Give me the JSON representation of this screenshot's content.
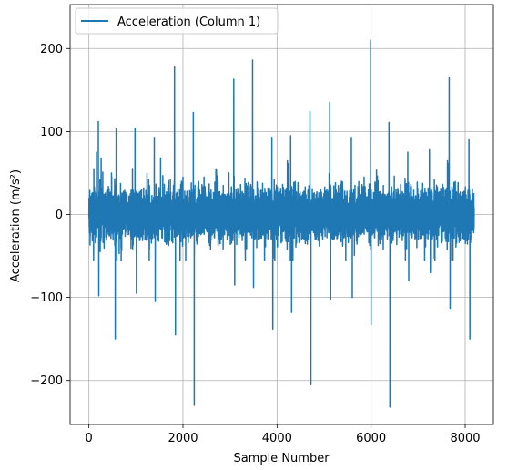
{
  "chart_data": {
    "type": "line",
    "title": "",
    "xlabel": "Sample Number",
    "ylabel": "Acceleration (m/s²)",
    "xlim": [
      -400,
      8600
    ],
    "ylim": [
      -253,
      253
    ],
    "xticks": [
      0,
      2000,
      4000,
      6000,
      8000
    ],
    "xtick_labels": [
      "0",
      "2000",
      "4000",
      "6000",
      "8000"
    ],
    "yticks": [
      -200,
      -100,
      0,
      100,
      200
    ],
    "ytick_labels": [
      "−200",
      "−100",
      "0",
      "100",
      "200"
    ],
    "grid": true,
    "legend_position": "upper-left",
    "series": [
      {
        "name": "Acceleration (Column 1)",
        "color": "#1f77b4",
        "n_samples": 8192,
        "x_range": [
          0,
          8191
        ],
        "approx_typical_range": [
          -40,
          50
        ],
        "spikes": [
          {
            "x": 50,
            "y": 20
          },
          {
            "x": 100,
            "y": -55
          },
          {
            "x": 160,
            "y": 75
          },
          {
            "x": 200,
            "y": 112
          },
          {
            "x": 210,
            "y": -98
          },
          {
            "x": 480,
            "y": 50
          },
          {
            "x": 560,
            "y": -150
          },
          {
            "x": 580,
            "y": 103
          },
          {
            "x": 980,
            "y": 104
          },
          {
            "x": 1010,
            "y": -95
          },
          {
            "x": 1390,
            "y": 93
          },
          {
            "x": 1410,
            "y": -105
          },
          {
            "x": 1820,
            "y": 178
          },
          {
            "x": 1840,
            "y": -145
          },
          {
            "x": 2000,
            "y": 45
          },
          {
            "x": 2220,
            "y": 123
          },
          {
            "x": 2240,
            "y": -230
          },
          {
            "x": 2700,
            "y": 55
          },
          {
            "x": 3080,
            "y": 163
          },
          {
            "x": 3100,
            "y": -85
          },
          {
            "x": 3480,
            "y": 186
          },
          {
            "x": 3500,
            "y": -88
          },
          {
            "x": 3890,
            "y": 93
          },
          {
            "x": 3910,
            "y": -138
          },
          {
            "x": 4290,
            "y": 95
          },
          {
            "x": 4310,
            "y": -118
          },
          {
            "x": 4700,
            "y": 124
          },
          {
            "x": 4720,
            "y": -205
          },
          {
            "x": 5120,
            "y": 135
          },
          {
            "x": 5140,
            "y": -102
          },
          {
            "x": 5580,
            "y": 93
          },
          {
            "x": 5600,
            "y": -100
          },
          {
            "x": 5990,
            "y": 210
          },
          {
            "x": 6000,
            "y": -133
          },
          {
            "x": 6380,
            "y": 111
          },
          {
            "x": 6400,
            "y": -232
          },
          {
            "x": 6780,
            "y": 75
          },
          {
            "x": 6800,
            "y": -80
          },
          {
            "x": 7240,
            "y": 78
          },
          {
            "x": 7260,
            "y": -70
          },
          {
            "x": 7660,
            "y": 165
          },
          {
            "x": 7680,
            "y": -113
          },
          {
            "x": 8080,
            "y": 90
          },
          {
            "x": 8100,
            "y": -150
          }
        ]
      }
    ]
  },
  "legend": {
    "label": "Acceleration (Column 1)"
  }
}
